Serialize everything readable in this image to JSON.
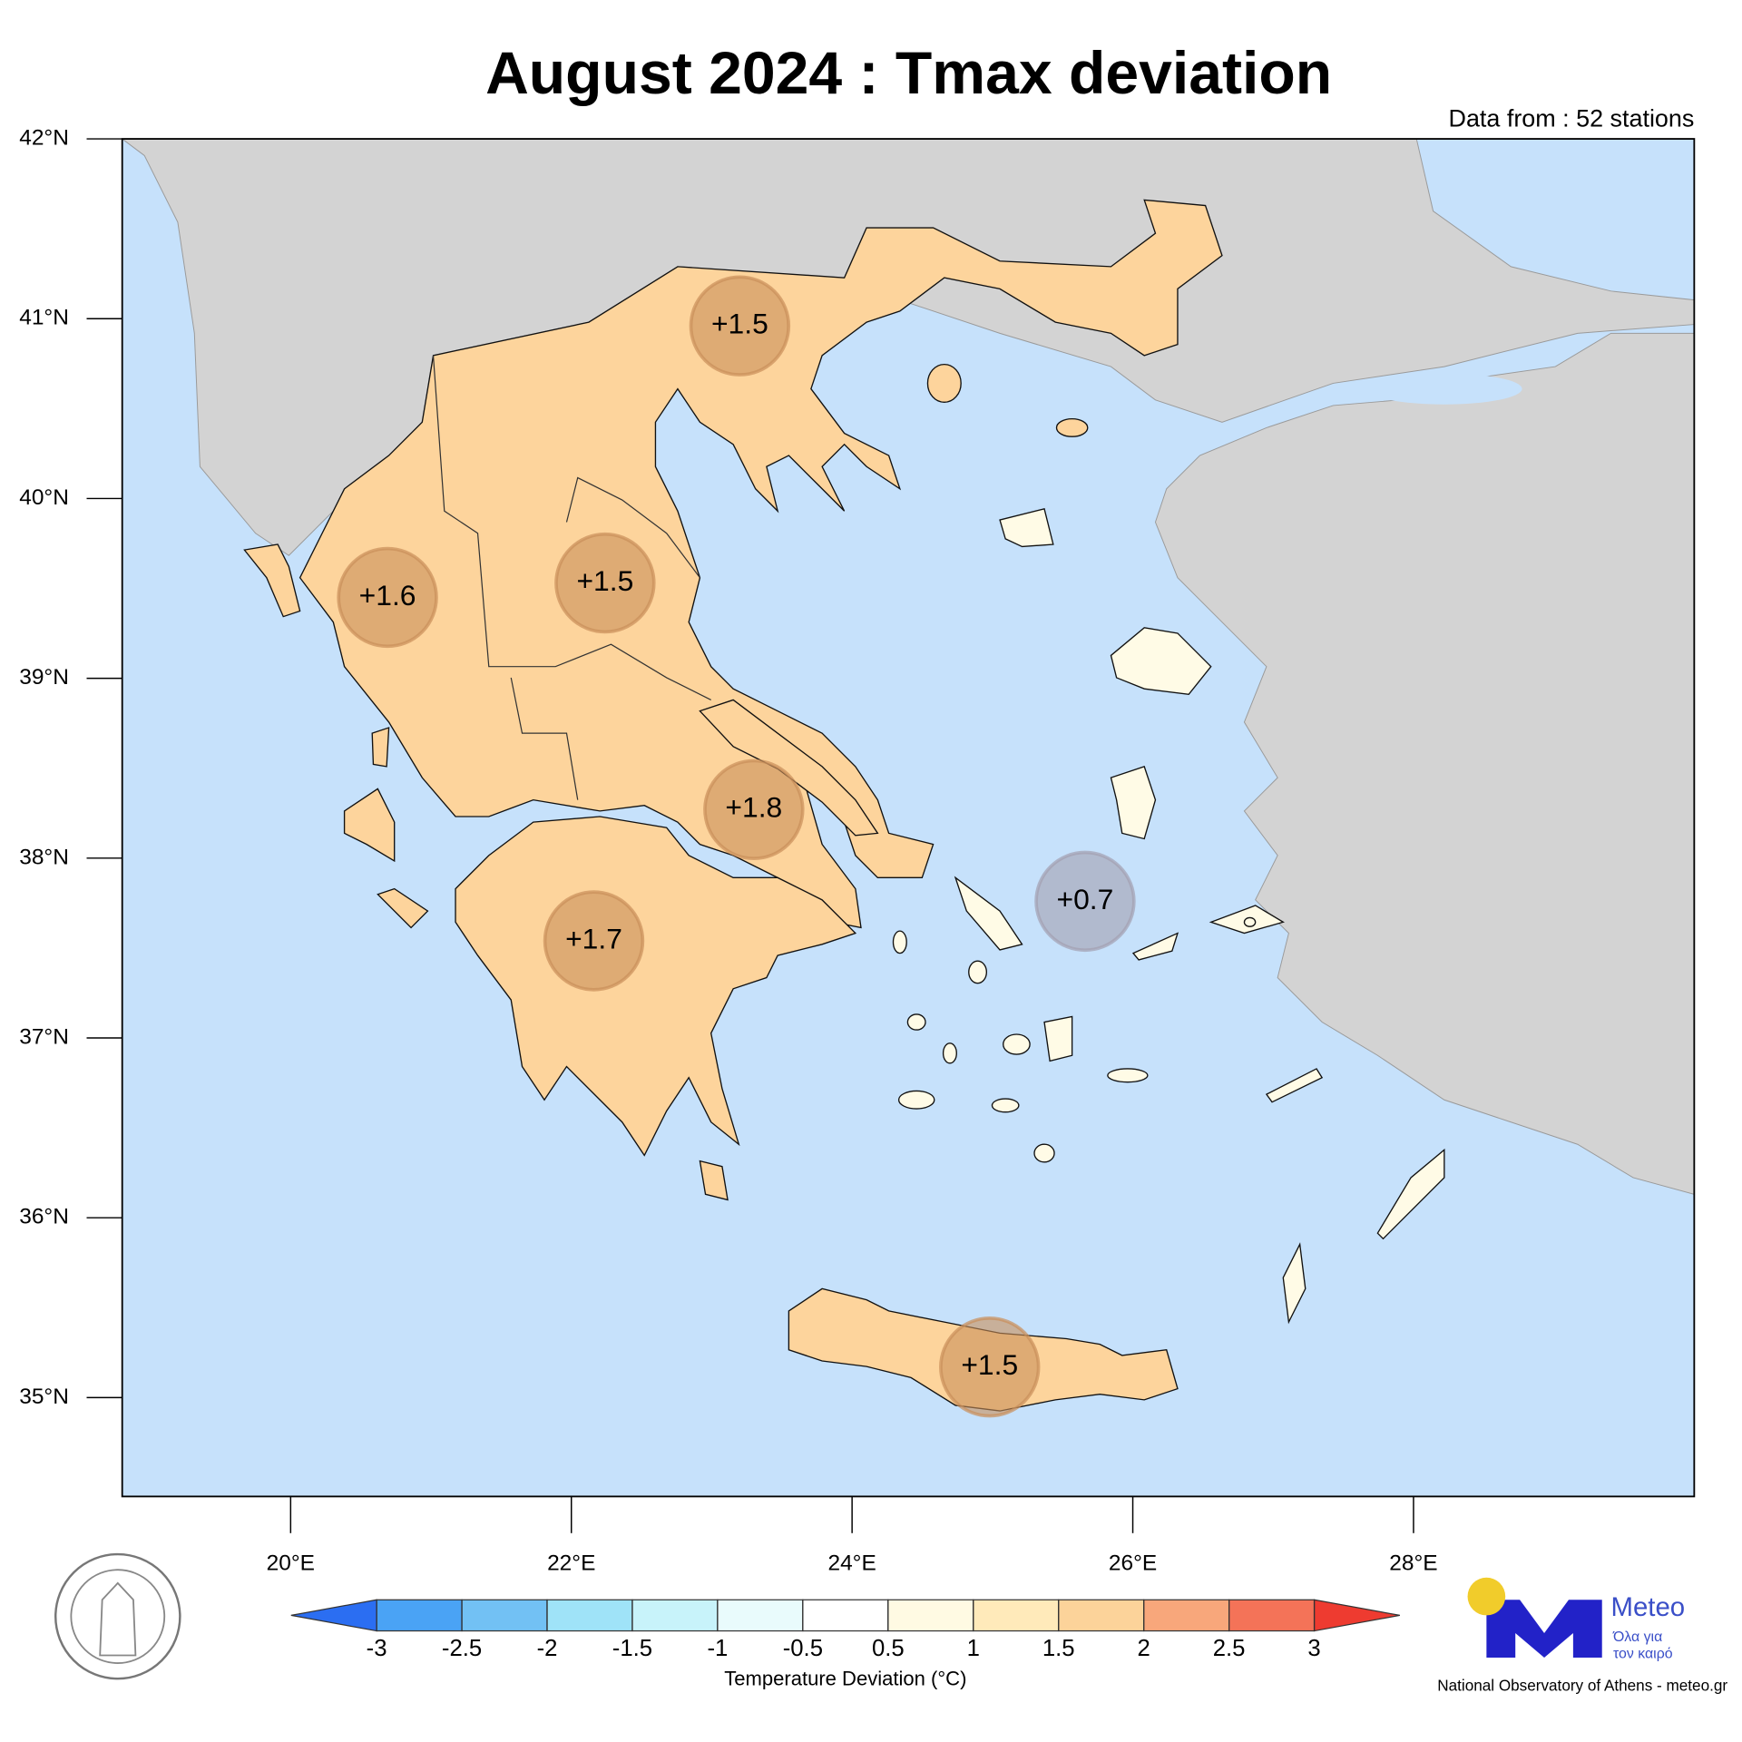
{
  "title": "August 2024 : Tmax deviation",
  "subtitle": "Data from : 52 stations",
  "map": {
    "lonlim": [
      18.8,
      30.0
    ],
    "latlim": [
      34.45,
      42
    ],
    "lon_ticks": [
      {
        "value": 20,
        "label": "20°E"
      },
      {
        "value": 22,
        "label": "22°E"
      },
      {
        "value": 24,
        "label": "24°E"
      },
      {
        "value": 26,
        "label": "26°E"
      },
      {
        "value": 28,
        "label": "28°E"
      }
    ],
    "lat_ticks": [
      {
        "value": 42,
        "label": "42°N"
      },
      {
        "value": 41,
        "label": "41°N"
      },
      {
        "value": 40,
        "label": "40°N"
      },
      {
        "value": 39,
        "label": "39°N"
      },
      {
        "value": 38,
        "label": "38°N"
      },
      {
        "value": 37,
        "label": "37°N"
      },
      {
        "value": 36,
        "label": "36°N"
      },
      {
        "value": 35,
        "label": "35°N"
      }
    ]
  },
  "stations": [
    {
      "lon": 23.2,
      "lat": 40.96,
      "value": 1.5,
      "label": "+1.5",
      "color": "#c98f5a"
    },
    {
      "lon": 20.69,
      "lat": 39.45,
      "value": 1.6,
      "label": "+1.6",
      "color": "#c98f5a"
    },
    {
      "lon": 22.24,
      "lat": 39.53,
      "value": 1.5,
      "label": "+1.5",
      "color": "#c98f5a"
    },
    {
      "lon": 23.3,
      "lat": 38.27,
      "value": 1.8,
      "label": "+1.8",
      "color": "#c98f5a"
    },
    {
      "lon": 22.16,
      "lat": 37.54,
      "value": 1.7,
      "label": "+1.7",
      "color": "#c98f5a"
    },
    {
      "lon": 25.66,
      "lat": 37.76,
      "value": 0.7,
      "label": "+0.7",
      "color": "#a3a0b0"
    },
    {
      "lon": 24.98,
      "lat": 35.17,
      "value": 1.5,
      "label": "+1.5",
      "color": "#c98f5a"
    }
  ],
  "colorbar": {
    "title": "Temperature Deviation (°C)",
    "levels": [
      -3,
      -2.5,
      -2,
      -1.5,
      -1,
      -0.5,
      0.5,
      1,
      1.5,
      2,
      2.5,
      3
    ],
    "colors": [
      "#2b6ef2",
      "#4aa3f5",
      "#72c1f4",
      "#9fe3f8",
      "#c8f3fa",
      "#e9fbfc",
      "#ffffff",
      "#fffae3",
      "#ffeaba",
      "#fcd39a",
      "#f8a77b",
      "#f47358",
      "#ee3b30"
    ]
  },
  "branding": {
    "name": "Meteo",
    "slogan": [
      "Όλα για",
      "τον καιρό"
    ],
    "footer": "National Observatory of Athens - meteo.gr"
  }
}
